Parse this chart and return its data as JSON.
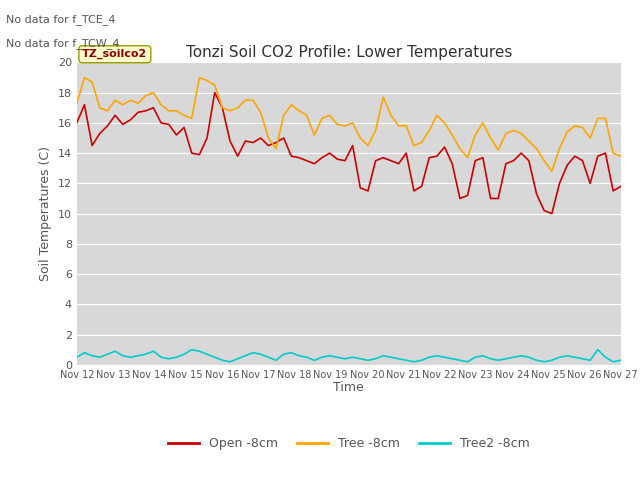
{
  "title": "Tonzi Soil CO2 Profile: Lower Temperatures",
  "ylabel": "Soil Temperatures (C)",
  "xlabel": "Time",
  "top_text_line1": "No data for f_TCE_4",
  "top_text_line2": "No data for f_TCW_4",
  "legend_box_text": "TZ_soilco2",
  "ylim": [
    0,
    20
  ],
  "yticks": [
    0,
    2,
    4,
    6,
    8,
    10,
    12,
    14,
    16,
    18,
    20
  ],
  "xtick_labels": [
    "Nov 12",
    "Nov 13",
    "Nov 14",
    "Nov 15",
    "Nov 16",
    "Nov 17",
    "Nov 18",
    "Nov 19",
    "Nov 20",
    "Nov 21",
    "Nov 22",
    "Nov 23",
    "Nov 24",
    "Nov 25",
    "Nov 26",
    "Nov 27"
  ],
  "fig_bg_color": "#ffffff",
  "plot_bg_color": "#d8d8d8",
  "grid_color": "#ffffff",
  "line_colors": {
    "open": "#cc0000",
    "tree": "#ffa500",
    "tree2": "#00cccc"
  },
  "legend_labels": [
    "Open -8cm",
    "Tree -8cm",
    "Tree2 -8cm"
  ],
  "open_8cm": [
    16.0,
    17.2,
    14.5,
    15.3,
    15.8,
    16.5,
    15.9,
    16.2,
    16.7,
    16.8,
    17.0,
    16.0,
    15.9,
    15.2,
    15.7,
    14.0,
    13.9,
    15.0,
    18.0,
    17.0,
    14.8,
    13.8,
    14.8,
    14.7,
    15.0,
    14.5,
    14.7,
    15.0,
    13.8,
    13.7,
    13.5,
    13.3,
    13.7,
    14.0,
    13.6,
    13.5,
    14.5,
    11.7,
    11.5,
    13.5,
    13.7,
    13.5,
    13.3,
    14.0,
    11.5,
    11.8,
    13.7,
    13.8,
    14.4,
    13.3,
    11.0,
    11.2,
    13.5,
    13.7,
    11.0,
    11.0,
    13.3,
    13.5,
    14.0,
    13.5,
    11.3,
    10.2,
    10.0,
    12.0,
    13.2,
    13.8,
    13.5,
    12.0,
    13.8,
    14.0,
    11.5,
    11.8
  ],
  "tree_8cm": [
    17.3,
    19.0,
    18.7,
    17.0,
    16.8,
    17.5,
    17.2,
    17.5,
    17.3,
    17.8,
    18.0,
    17.2,
    16.8,
    16.8,
    16.5,
    16.3,
    19.0,
    18.8,
    18.5,
    17.0,
    16.8,
    17.0,
    17.5,
    17.5,
    16.7,
    15.0,
    14.3,
    16.5,
    17.2,
    16.8,
    16.5,
    15.2,
    16.3,
    16.5,
    15.9,
    15.8,
    16.0,
    15.0,
    14.5,
    15.5,
    17.7,
    16.5,
    15.8,
    15.8,
    14.5,
    14.7,
    15.5,
    16.5,
    16.0,
    15.2,
    14.3,
    13.7,
    15.2,
    16.0,
    15.0,
    14.2,
    15.3,
    15.5,
    15.3,
    14.8,
    14.3,
    13.5,
    12.8,
    14.3,
    15.4,
    15.8,
    15.7,
    15.0,
    16.3,
    16.3,
    14.0,
    13.8
  ],
  "tree2_8cm": [
    0.5,
    0.8,
    0.6,
    0.5,
    0.7,
    0.9,
    0.6,
    0.5,
    0.6,
    0.7,
    0.9,
    0.5,
    0.4,
    0.5,
    0.7,
    1.0,
    0.9,
    0.7,
    0.5,
    0.3,
    0.2,
    0.4,
    0.6,
    0.8,
    0.7,
    0.5,
    0.3,
    0.7,
    0.8,
    0.6,
    0.5,
    0.3,
    0.5,
    0.6,
    0.5,
    0.4,
    0.5,
    0.4,
    0.3,
    0.4,
    0.6,
    0.5,
    0.4,
    0.3,
    0.2,
    0.3,
    0.5,
    0.6,
    0.5,
    0.4,
    0.3,
    0.2,
    0.5,
    0.6,
    0.4,
    0.3,
    0.4,
    0.5,
    0.6,
    0.5,
    0.3,
    0.2,
    0.3,
    0.5,
    0.6,
    0.5,
    0.4,
    0.3,
    1.0,
    0.5,
    0.2,
    0.3
  ]
}
